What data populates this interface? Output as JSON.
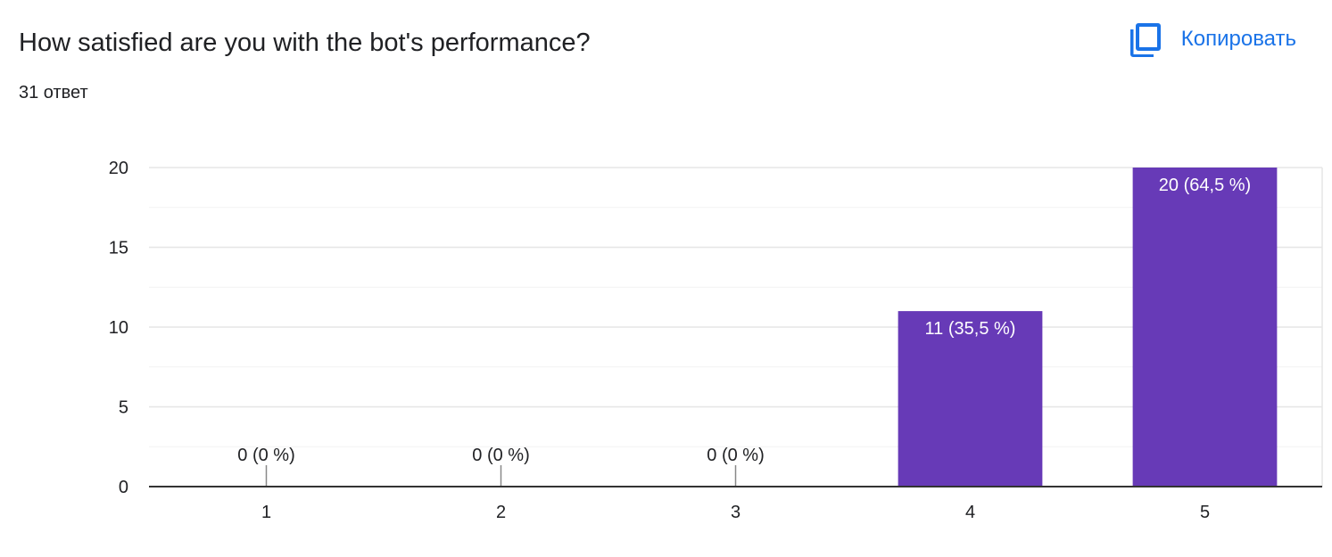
{
  "header": {
    "question_title": "How satisfied are you with the bot's performance?",
    "response_count": "31 ответ",
    "copy_label": "Копировать",
    "copy_icon": "copy-icon"
  },
  "colors": {
    "bar": "#673ab7",
    "accent": "#1a73e8",
    "text": "#202124",
    "grid_major": "#e6e6e6",
    "grid_minor": "#f2f2f2",
    "axis": "#333333"
  },
  "chart_data": {
    "type": "bar",
    "categories": [
      "1",
      "2",
      "3",
      "4",
      "5"
    ],
    "values": [
      0,
      0,
      0,
      11,
      20
    ],
    "data_labels": [
      "0 (0 %)",
      "0 (0 %)",
      "0 (0 %)",
      "11 (35,5 %)",
      "20 (64,5 %)"
    ],
    "yticks": [
      0,
      5,
      10,
      15,
      20
    ],
    "ylim": [
      0,
      20
    ],
    "grid": true,
    "title": "",
    "xlabel": "",
    "ylabel": ""
  }
}
